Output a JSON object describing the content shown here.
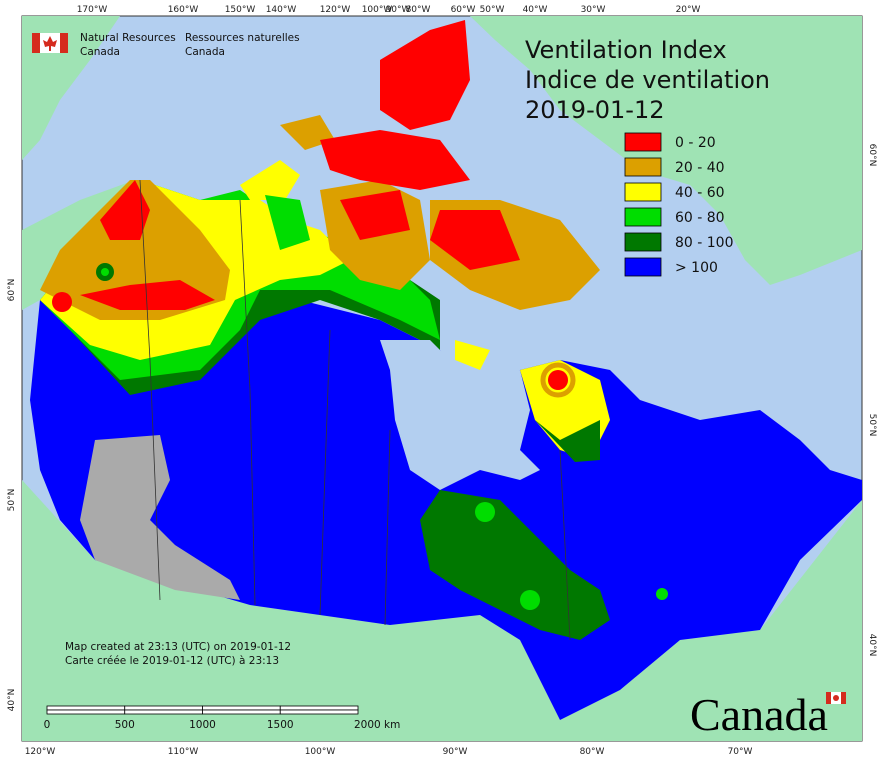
{
  "header": {
    "agency_en": [
      "Natural Resources",
      "Canada"
    ],
    "agency_fr": [
      "Ressources naturelles",
      "Canada"
    ]
  },
  "title": {
    "en": "Ventilation Index",
    "fr": "Indice de ventilation",
    "date": "2019-01-12"
  },
  "legend": [
    {
      "label": "0 - 20",
      "color": "#ff0000"
    },
    {
      "label": "20 - 40",
      "color": "#dca000"
    },
    {
      "label": "40 - 60",
      "color": "#ffff00"
    },
    {
      "label": "60 - 80",
      "color": "#00dd00"
    },
    {
      "label": "80 - 100",
      "color": "#007800"
    },
    {
      "label": "> 100",
      "color": "#0000ff"
    }
  ],
  "graticule": {
    "top": [
      "170°W",
      "160°W",
      "150°W",
      "140°W",
      "120°W",
      "100°W",
      "90°W",
      "80°W",
      "60°W",
      "50°W",
      "40°W",
      "30°W",
      "20°W"
    ],
    "bottom": [
      "120°W",
      "110°W",
      "100°W",
      "90°W",
      "80°W",
      "70°W"
    ],
    "left": [
      "60°N",
      "50°N",
      "40°N"
    ],
    "right": [
      "60°N",
      "50°N",
      "40°N"
    ]
  },
  "scale_bar": {
    "labels": [
      "0",
      "500",
      "1000",
      "1500",
      "2000 km"
    ]
  },
  "footer": {
    "lines": [
      "Map created at 23:13 (UTC) on 2019-01-12",
      "Carte créée le 2019-01-12 (UTC) à 23:13"
    ]
  },
  "wordmark": "Canada"
}
